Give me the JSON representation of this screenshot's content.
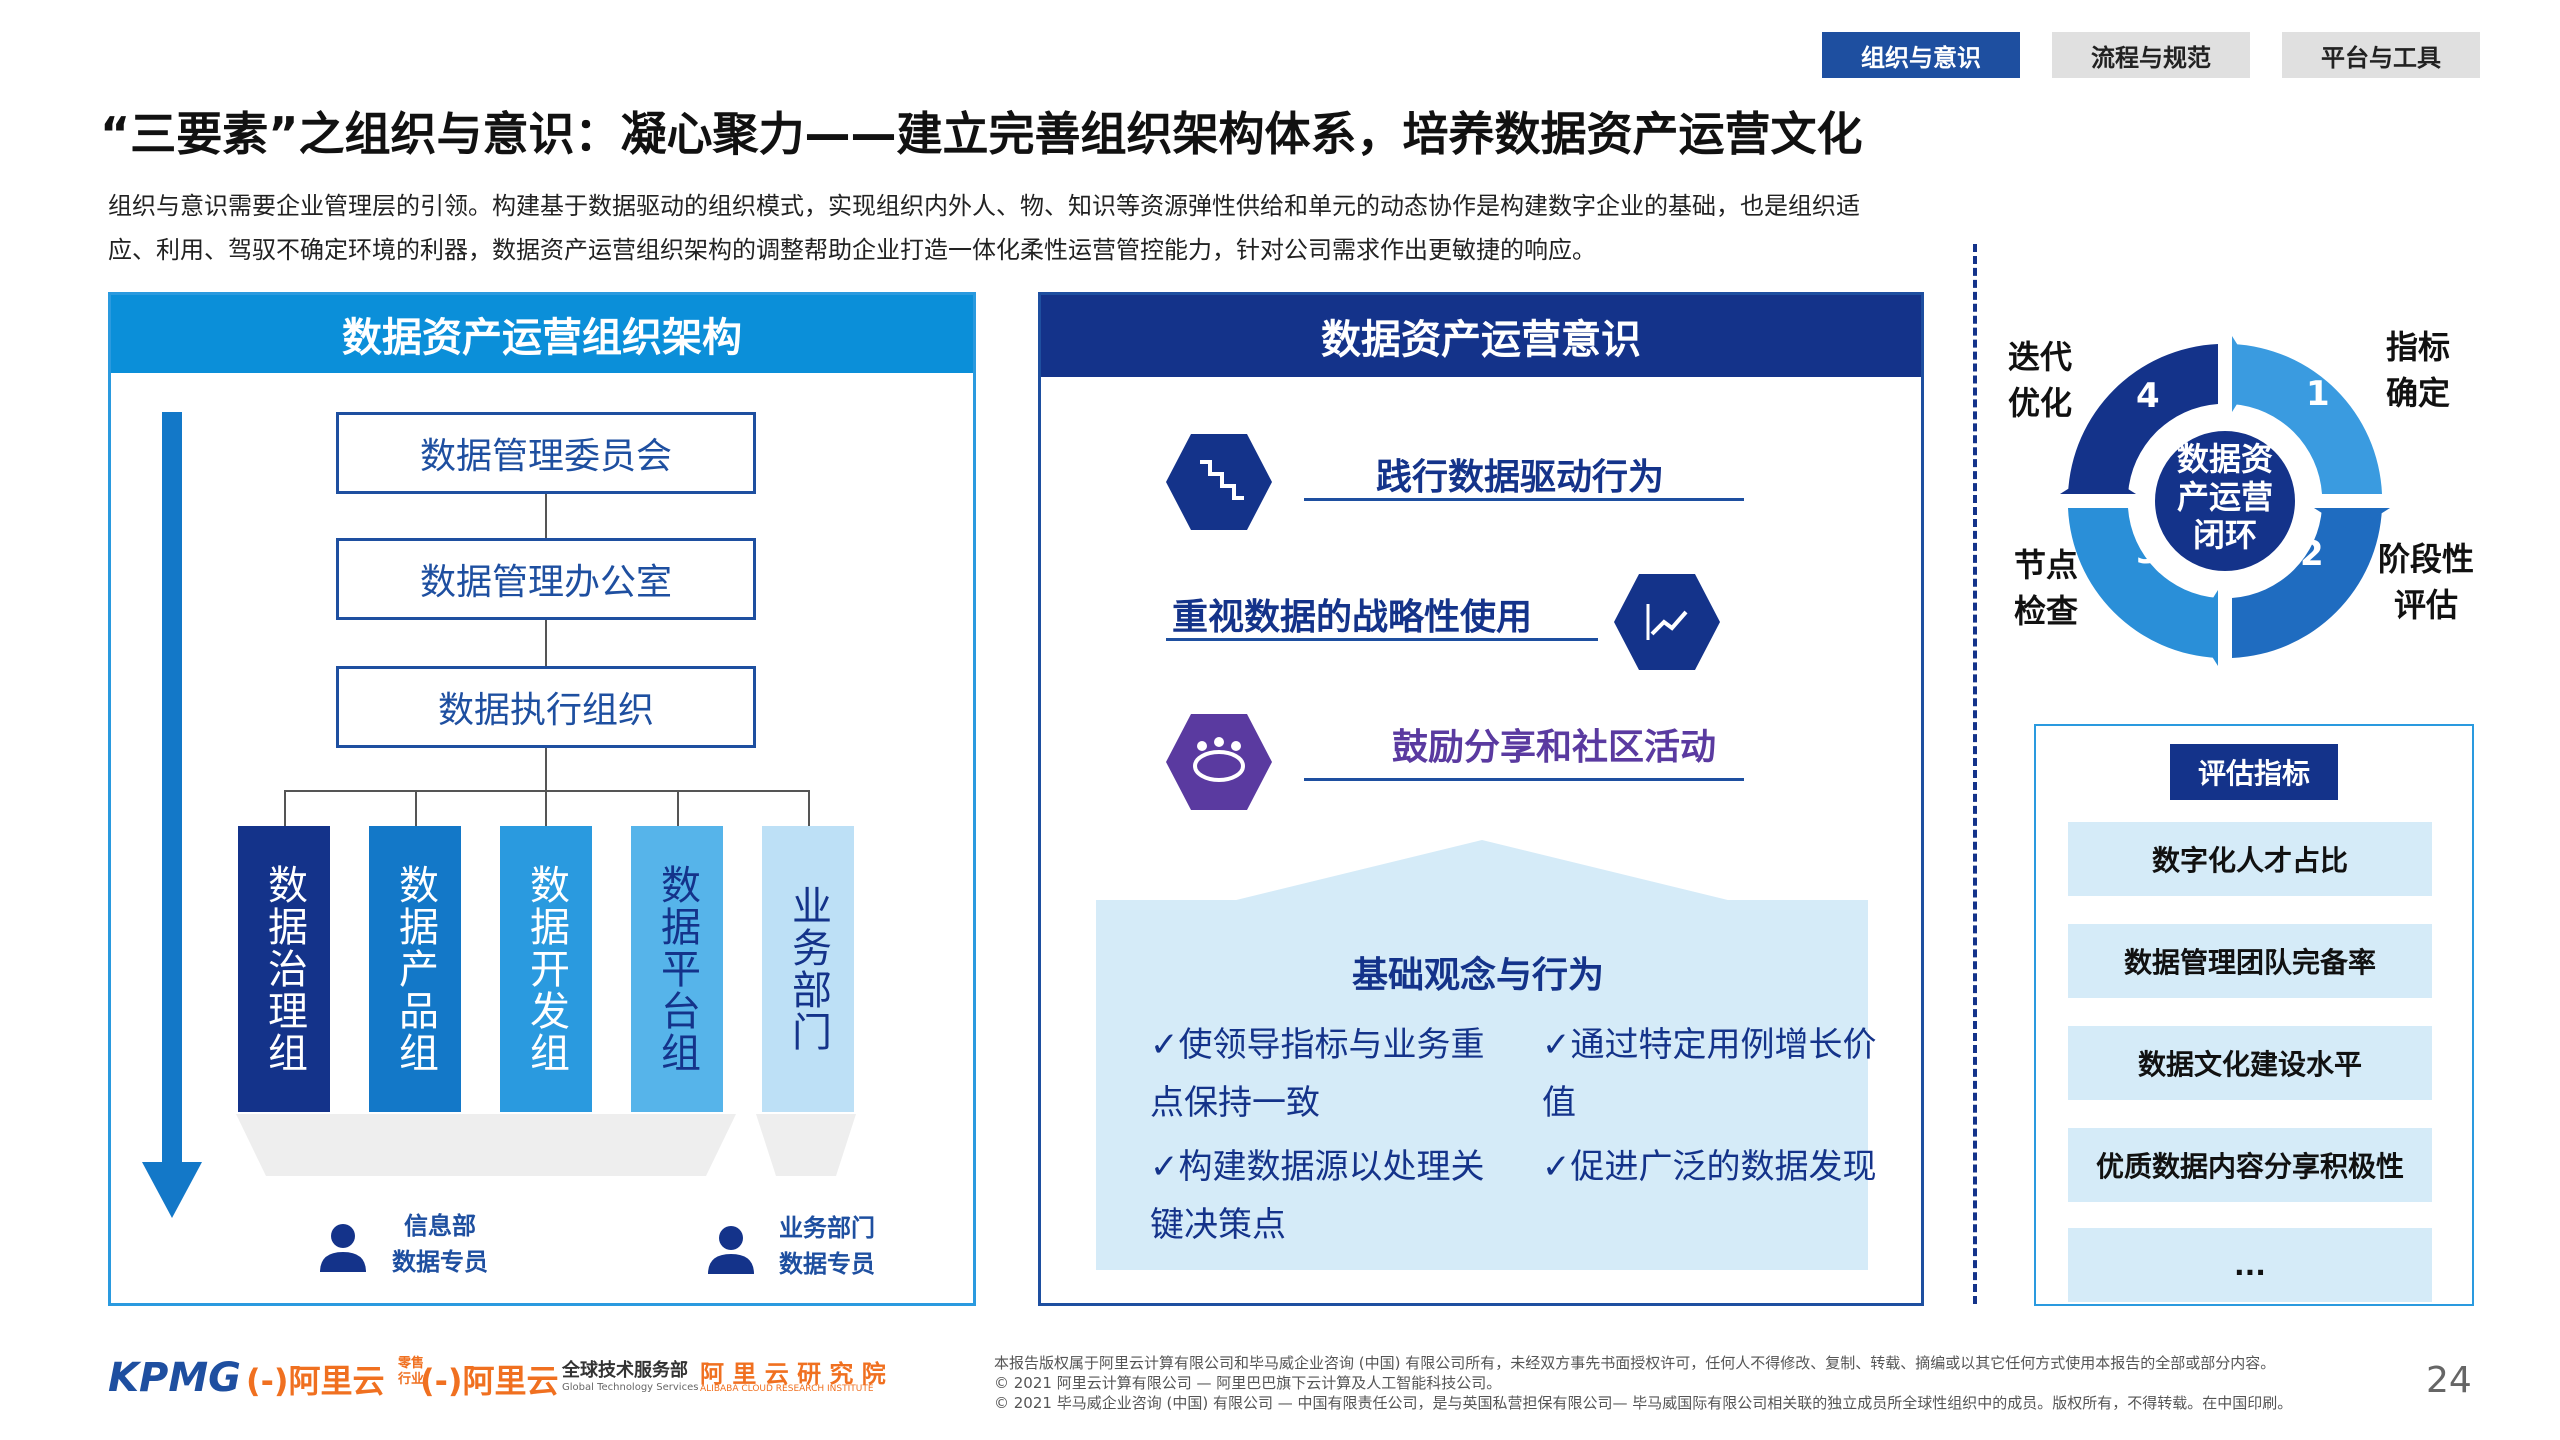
{
  "tabs": [
    {
      "label": "组织与意识",
      "active": true
    },
    {
      "label": "流程与规范",
      "active": false
    },
    {
      "label": "平台与工具",
      "active": false
    }
  ],
  "title": "“三要素”之组织与意识：凝心聚力——建立完善组织架构体系，培养数据资产运营文化",
  "intro": [
    "组织与意识需要企业管理层的引领。构建基于数据驱动的组织模式，实现组织内外人、物、知识等资源弹性供给和单元的动态协作是构建数字企业的基础，也是组织适",
    "应、利用、驾驭不确定环境的利器，数据资产运营组织架构的调整帮助企业打造一体化柔性运营管控能力，针对公司需求作出更敏捷的响应。"
  ],
  "left_panel": {
    "title": "数据资产运营组织架构",
    "boxes": [
      "数据管理委员会",
      "数据管理办公室",
      "数据执行组织"
    ],
    "columns": [
      {
        "label": "数据治理组",
        "color": "#14338a",
        "text_color": "#ffffff"
      },
      {
        "label": "数据产品组",
        "color": "#1378c8",
        "text_color": "#ffffff"
      },
      {
        "label": "数据开发组",
        "color": "#2a9adf",
        "text_color": "#ffffff"
      },
      {
        "label": "数据平台组",
        "color": "#56b4ea",
        "text_color": "#14338a"
      },
      {
        "label": "业务部门",
        "color": "#bde0f6",
        "text_color": "#14338a"
      }
    ],
    "roles": [
      {
        "line1": "信息部",
        "line2": "数据专员"
      },
      {
        "line1": "业务部门",
        "line2": "数据专员"
      }
    ]
  },
  "mid_panel": {
    "title": "数据资产运营意识",
    "behaviors": [
      {
        "label": "践行数据驱动行为",
        "icon": "staircase-chart-icon",
        "color": "#14338a"
      },
      {
        "label": "重视数据的战略性使用",
        "icon": "trend-chart-icon",
        "color": "#14338a"
      },
      {
        "label": "鼓励分享和社区活动",
        "icon": "community-table-icon",
        "color": "#5a3aa0"
      }
    ],
    "foundation": {
      "title": "基础观念与行为",
      "items": [
        "✓使领导指标与业务重点保持一致",
        "✓通过特定用例增长价值",
        "✓构建数据源以处理关键决策点",
        "✓促进广泛的数据发现"
      ]
    }
  },
  "cycle": {
    "center": "数据资产运营闭环",
    "steps": [
      {
        "num": "1",
        "label": "指标确定"
      },
      {
        "num": "2",
        "label": "阶段性评估"
      },
      {
        "num": "3",
        "label": "节点检查"
      },
      {
        "num": "4",
        "label": "迭代优化"
      }
    ]
  },
  "metrics": {
    "badge": "评估指标",
    "items": [
      "数字化人才占比",
      "数据管理团队完备率",
      "数据文化建设水平",
      "优质数据内容分享积极性",
      "..."
    ]
  },
  "footer": {
    "logos": {
      "kpmg": "KPMG",
      "ali1": "(-)阿里云",
      "ali1_sub1": "零售",
      "ali1_sub2": "行业",
      "ali2": "(-)阿里云",
      "ali2_sub": "全球技术服务部",
      "ali2_en": "Global Technology Services",
      "ali3": "阿 里 云 研 究 院",
      "ali3_en": "ALIBABA CLOUD RESEARCH INSTITUTE"
    },
    "lines": [
      "本报告版权属于阿里云计算有限公司和毕马威企业咨询 (中国) 有限公司所有，未经双方事先书面授权许可，任何人不得修改、复制、转载、摘编或以其它任何方式使用本报告的全部或部分内容。",
      "© 2021 阿里云计算有限公司 — 阿里巴巴旗下云计算及人工智能科技公司。",
      "© 2021 毕马威企业咨询 (中国) 有限公司 — 中国有限责任公司，是与英国私营担保有限公司— 毕马威国际有限公司相关联的独立成员所全球性组织中的成员。版权所有，不得转载。在中国印刷。"
    ],
    "page": "24"
  }
}
